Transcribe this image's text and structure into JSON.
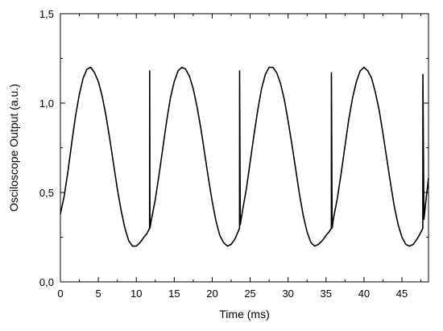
{
  "chart_data": {
    "type": "line",
    "title": "",
    "xlabel": "Time (ms)",
    "ylabel": "Osciloscope Output (a.u.)",
    "xlim": [
      0,
      48.5
    ],
    "ylim": [
      0,
      1.5
    ],
    "xticks": [
      0,
      5,
      10,
      15,
      20,
      25,
      30,
      35,
      40,
      45
    ],
    "xtick_labels": [
      "0",
      "5",
      "10",
      "15",
      "20",
      "25",
      "30",
      "35",
      "40",
      "45"
    ],
    "yticks": [
      0,
      0.5,
      1.0,
      1.5
    ],
    "ytick_labels": [
      "0,0",
      "0,5",
      "1,0",
      "1,5"
    ],
    "grid": false,
    "legend": "none",
    "line_color": "#000000",
    "series": [
      {
        "x": [
          0,
          0.5,
          1.0,
          1.5,
          2.0,
          2.5,
          3.0,
          3.5,
          4.0,
          4.5,
          5.0,
          5.5,
          6.0,
          6.5,
          7.0,
          7.5,
          8.0,
          8.5,
          9.0,
          9.5,
          10.0,
          10.5,
          11.0,
          11.4,
          11.75,
          11.76,
          11.8,
          12.0,
          12.5,
          13.0,
          13.5,
          14.0,
          14.5,
          15.0,
          15.5,
          16.0,
          16.5,
          17.0,
          17.5,
          18.0,
          18.5,
          19.0,
          19.5,
          20.0,
          20.5,
          21.0,
          21.5,
          22.0,
          22.5,
          23.0,
          23.3,
          23.6,
          23.61,
          23.7,
          24.0,
          24.5,
          25.0,
          25.5,
          26.0,
          26.5,
          27.0,
          27.5,
          28.0,
          28.5,
          29.0,
          29.5,
          30.0,
          30.5,
          31.0,
          31.5,
          32.0,
          32.5,
          33.0,
          33.5,
          34.0,
          34.5,
          35.0,
          35.4,
          35.7,
          35.71,
          35.8,
          36.0,
          36.5,
          37.0,
          37.5,
          38.0,
          38.5,
          39.0,
          39.5,
          40.0,
          40.5,
          41.0,
          41.5,
          42.0,
          42.5,
          43.0,
          43.5,
          44.0,
          44.5,
          45.0,
          45.5,
          46.0,
          46.5,
          47.0,
          47.4,
          47.75,
          47.76,
          47.9,
          48.2,
          48.5
        ],
        "values": [
          0.38,
          0.48,
          0.62,
          0.78,
          0.93,
          1.05,
          1.14,
          1.19,
          1.2,
          1.17,
          1.12,
          1.04,
          0.93,
          0.8,
          0.66,
          0.52,
          0.4,
          0.3,
          0.23,
          0.2,
          0.2,
          0.22,
          0.25,
          0.27,
          0.3,
          1.18,
          0.3,
          0.35,
          0.46,
          0.6,
          0.75,
          0.9,
          1.03,
          1.12,
          1.18,
          1.2,
          1.19,
          1.15,
          1.08,
          0.98,
          0.86,
          0.72,
          0.58,
          0.45,
          0.34,
          0.26,
          0.22,
          0.2,
          0.21,
          0.24,
          0.27,
          0.3,
          1.18,
          0.32,
          0.4,
          0.52,
          0.67,
          0.82,
          0.96,
          1.08,
          1.16,
          1.2,
          1.2,
          1.17,
          1.11,
          1.02,
          0.9,
          0.77,
          0.63,
          0.49,
          0.37,
          0.28,
          0.22,
          0.2,
          0.21,
          0.23,
          0.26,
          0.28,
          0.3,
          1.17,
          0.3,
          0.36,
          0.47,
          0.61,
          0.76,
          0.91,
          1.03,
          1.12,
          1.18,
          1.2,
          1.18,
          1.14,
          1.06,
          0.96,
          0.83,
          0.69,
          0.55,
          0.42,
          0.32,
          0.25,
          0.21,
          0.2,
          0.21,
          0.24,
          0.27,
          0.3,
          1.16,
          0.35,
          0.47,
          0.58
        ]
      }
    ]
  }
}
